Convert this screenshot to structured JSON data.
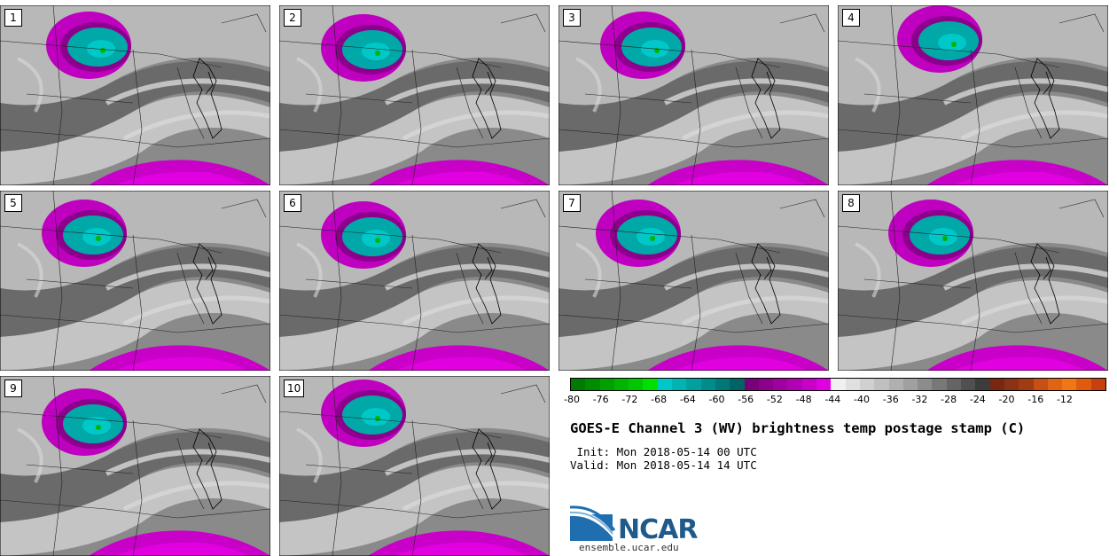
{
  "panels": [
    {
      "label": "1"
    },
    {
      "label": "2"
    },
    {
      "label": "3"
    },
    {
      "label": "4"
    },
    {
      "label": "5"
    },
    {
      "label": "6"
    },
    {
      "label": "7"
    },
    {
      "label": "8"
    },
    {
      "label": "9"
    },
    {
      "label": "10"
    }
  ],
  "colorbar": {
    "colors": [
      "#007a00",
      "#008c00",
      "#00a000",
      "#00b400",
      "#00c800",
      "#00e000",
      "#00c8c8",
      "#00b4b4",
      "#00a0a0",
      "#008c8c",
      "#007878",
      "#006464",
      "#780078",
      "#8c008c",
      "#a000a0",
      "#b400b4",
      "#c800c8",
      "#e000e0",
      "#f0f0f0",
      "#e0e0e0",
      "#d0d0d0",
      "#c0c0c0",
      "#b0b0b0",
      "#a0a0a0",
      "#8c8c8c",
      "#787878",
      "#646464",
      "#505050",
      "#3c3c3c",
      "#782810",
      "#8c3214",
      "#a03c14",
      "#c85014",
      "#e06414",
      "#f07814",
      "#e05a10",
      "#c84010"
    ],
    "ticks": [
      "-80",
      "-76",
      "-72",
      "-68",
      "-64",
      "-60",
      "-56",
      "-52",
      "-48",
      "-44",
      "-40",
      "-36",
      "-32",
      "-28",
      "-24",
      "-20",
      "-16",
      "-12"
    ]
  },
  "title": "GOES-E Channel 3 (WV) brightness temp postage stamp (C)",
  "init_line": " Init: Mon 2018-05-14 00 UTC",
  "valid_line": "Valid: Mon 2018-05-14 14 UTC",
  "logo_text": "NCAR",
  "url": "ensemble.ucar.edu"
}
